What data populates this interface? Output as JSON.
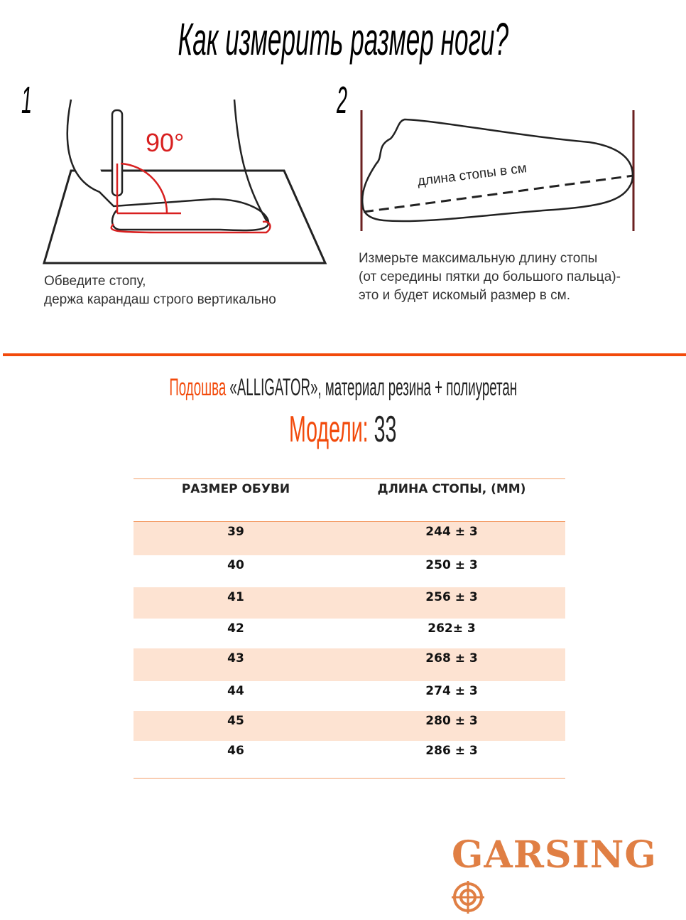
{
  "title": "Как измерить размер ноги?",
  "steps": [
    {
      "number": "1",
      "caption_line1": "Обведите стопу,",
      "caption_line2": "держа карандаш строго вертикально",
      "angle_label": "90°"
    },
    {
      "number": "2",
      "caption_line1": "Измерьте максимальную длину   стопы",
      "caption_line2": "(от середины пятки до большого пальца)-",
      "caption_line3": "это и будет искомый размер в см.",
      "foot_label": "длина стопы в см"
    }
  ],
  "sole": {
    "label": "Подошва",
    "text": "«ALLIGATOR», материал резина  + полиуретан"
  },
  "models": {
    "label": "Модели:",
    "value": "33"
  },
  "table": {
    "headers": [
      "РАЗМЕР ОБУВИ",
      "ДЛИНА СТОПЫ, (ММ)"
    ],
    "rows": [
      [
        "39",
        "244 ± 3"
      ],
      [
        "40",
        "250 ± 3"
      ],
      [
        "41",
        "256 ± 3"
      ],
      [
        "42",
        "262± 3"
      ],
      [
        "43",
        "268 ± 3"
      ],
      [
        "44",
        "274 ± 3"
      ],
      [
        "45",
        "280 ± 3"
      ],
      [
        "46",
        "286 ± 3"
      ]
    ]
  },
  "brand": "GARSING",
  "colors": {
    "accent": "#f24a0b",
    "row_fill": "#fde3d2",
    "logo": "#e07f44"
  }
}
